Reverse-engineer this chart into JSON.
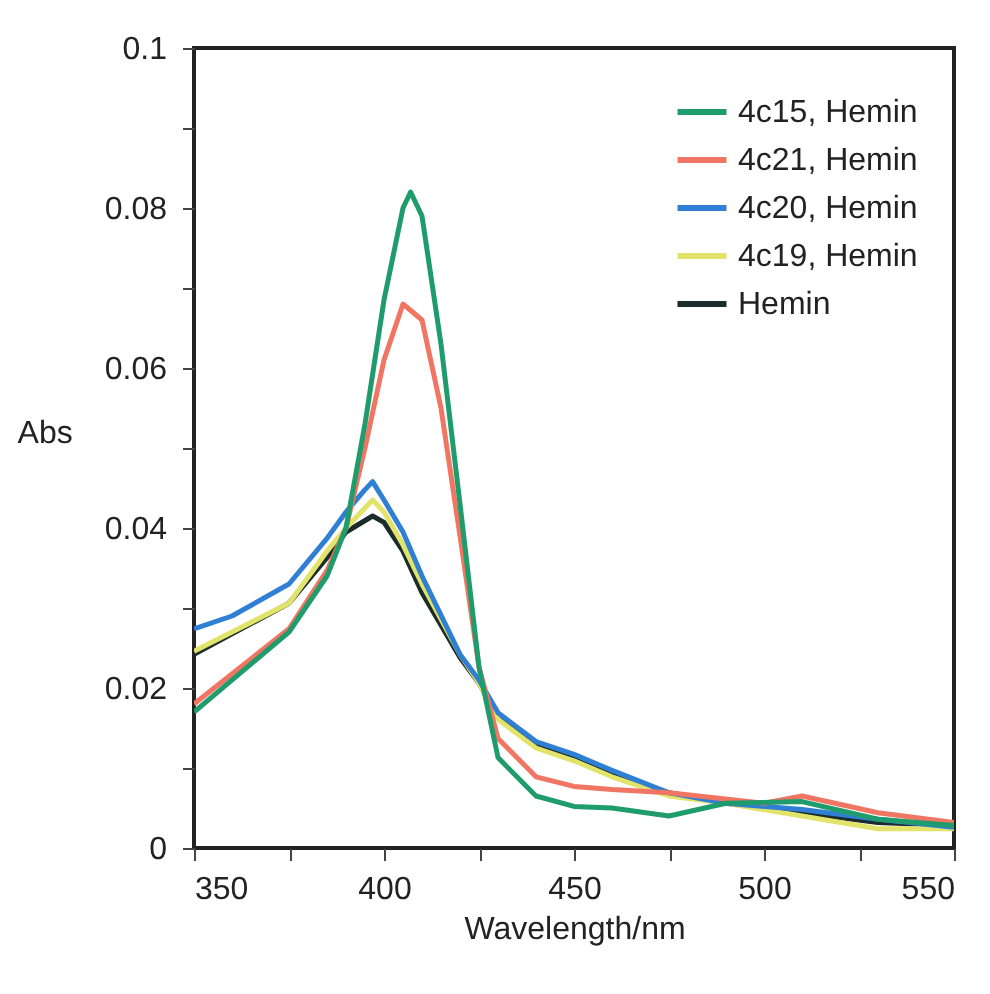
{
  "chart_data": {
    "type": "line",
    "xlabel": "Wavelength/nm",
    "ylabel": "Abs",
    "xlim": [
      350,
      550
    ],
    "ylim": [
      0,
      0.1
    ],
    "xticks": [
      350,
      {
        "value": 375,
        "label": null
      },
      400,
      {
        "value": 425,
        "label": null
      },
      450,
      {
        "value": 475,
        "label": null
      },
      500,
      {
        "value": 525,
        "label": null
      },
      550
    ],
    "yticks": [
      0,
      {
        "value": 0.01,
        "label": null
      },
      0.02,
      {
        "value": 0.03,
        "label": null
      },
      0.04,
      {
        "value": 0.05,
        "label": null
      },
      0.06,
      {
        "value": 0.07,
        "label": null
      },
      0.08,
      {
        "value": 0.09,
        "label": null
      },
      0.1
    ],
    "grid": false,
    "legend": "top right",
    "marker": "none",
    "line_style": "solid",
    "series": [
      {
        "name": "4c15, Hemin",
        "color": "#1f9c6c",
        "x": [
          350,
          375,
          385,
          390,
          395,
          400,
          405,
          407,
          410,
          415,
          420,
          425,
          430,
          440,
          450,
          460,
          475,
          490,
          510,
          530,
          550
        ],
        "values": [
          0.017,
          0.027,
          0.034,
          0.04,
          0.053,
          0.0685,
          0.08,
          0.082,
          0.079,
          0.063,
          0.043,
          0.0226,
          0.0113,
          0.0065,
          0.0052,
          0.005,
          0.004,
          0.0056,
          0.0058,
          0.0036,
          0.0028
        ]
      },
      {
        "name": "4c21, Hemin",
        "color": "#f07563",
        "x": [
          350,
          375,
          385,
          390,
          395,
          400,
          405,
          410,
          415,
          420,
          425,
          430,
          440,
          450,
          460,
          475,
          500,
          510,
          530,
          550
        ],
        "values": [
          0.018,
          0.0274,
          0.0347,
          0.04,
          0.05,
          0.061,
          0.068,
          0.066,
          0.055,
          0.039,
          0.0226,
          0.0137,
          0.0089,
          0.0077,
          0.0073,
          0.0069,
          0.0056,
          0.0065,
          0.0044,
          0.0032
        ]
      },
      {
        "name": "4c20, Hemin",
        "color": "#2f7fd4",
        "x": [
          350,
          360,
          375,
          385,
          390,
          395,
          397,
          400,
          405,
          410,
          420,
          425,
          430,
          440,
          450,
          460,
          475,
          490,
          510,
          530,
          550
        ],
        "values": [
          0.0274,
          0.029,
          0.033,
          0.0387,
          0.042,
          0.0448,
          0.0458,
          0.0435,
          0.0395,
          0.034,
          0.0242,
          0.021,
          0.0169,
          0.0133,
          0.0117,
          0.0097,
          0.0069,
          0.0056,
          0.0048,
          0.0036,
          0.0026
        ]
      },
      {
        "name": "4c19, Hemin",
        "color": "#e2e36a",
        "x": [
          350,
          375,
          385,
          390,
          397,
          400,
          405,
          410,
          420,
          425,
          430,
          440,
          450,
          460,
          475,
          490,
          510,
          530,
          550
        ],
        "values": [
          0.0246,
          0.0306,
          0.0371,
          0.04,
          0.0435,
          0.042,
          0.0379,
          0.033,
          0.0242,
          0.0206,
          0.0161,
          0.0125,
          0.0109,
          0.0089,
          0.0065,
          0.0056,
          0.004,
          0.0024,
          0.0024
        ]
      },
      {
        "name": "Hemin",
        "color": "#1c2b2b",
        "x": [
          350,
          375,
          385,
          390,
          397,
          400,
          405,
          410,
          420,
          425,
          430,
          440,
          450,
          460,
          475,
          490,
          510,
          530,
          550
        ],
        "values": [
          0.0242,
          0.0306,
          0.0363,
          0.0395,
          0.0415,
          0.0407,
          0.0371,
          0.0319,
          0.0238,
          0.0206,
          0.0165,
          0.0129,
          0.0113,
          0.0093,
          0.0069,
          0.0056,
          0.0044,
          0.0032,
          0.0028
        ]
      }
    ]
  }
}
